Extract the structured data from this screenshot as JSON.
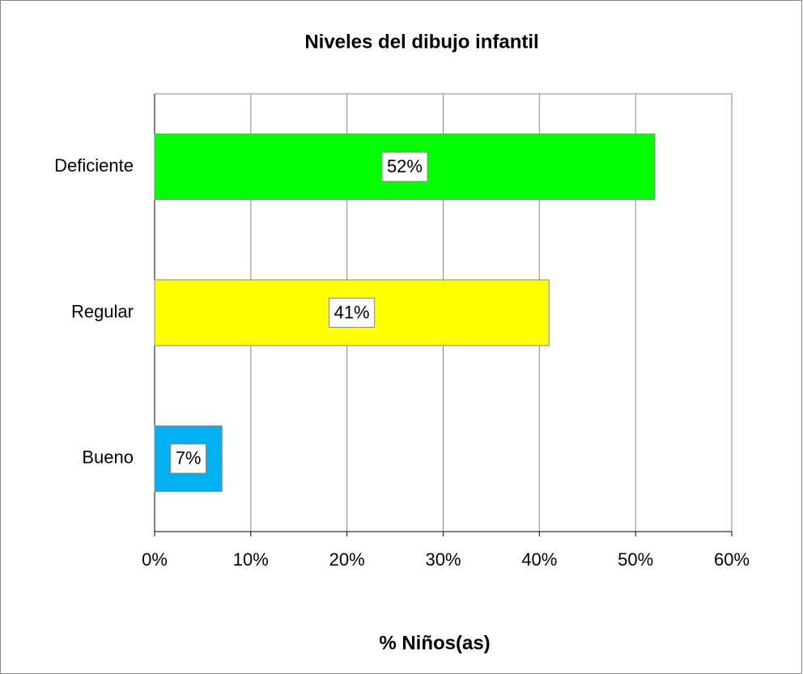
{
  "chart_data": {
    "type": "bar",
    "orientation": "horizontal",
    "title": "Niveles del dibujo infantil",
    "x_label": "% Niños(as)",
    "categories": [
      "Deficiente",
      "Regular",
      "Bueno"
    ],
    "values": [
      52,
      41,
      7
    ],
    "value_labels": [
      "52%",
      "41%",
      "7%"
    ],
    "colors": [
      "#00ff00",
      "#ffff00",
      "#00b0f0"
    ],
    "xlim": [
      0,
      60
    ],
    "xticks": [
      {
        "value": 0,
        "label": "0%"
      },
      {
        "value": 10,
        "label": "10%"
      },
      {
        "value": 20,
        "label": "20%"
      },
      {
        "value": 30,
        "label": "30%"
      },
      {
        "value": 40,
        "label": "40%"
      },
      {
        "value": 50,
        "label": "50%"
      },
      {
        "value": 60,
        "label": "60%"
      }
    ],
    "grid": true
  }
}
